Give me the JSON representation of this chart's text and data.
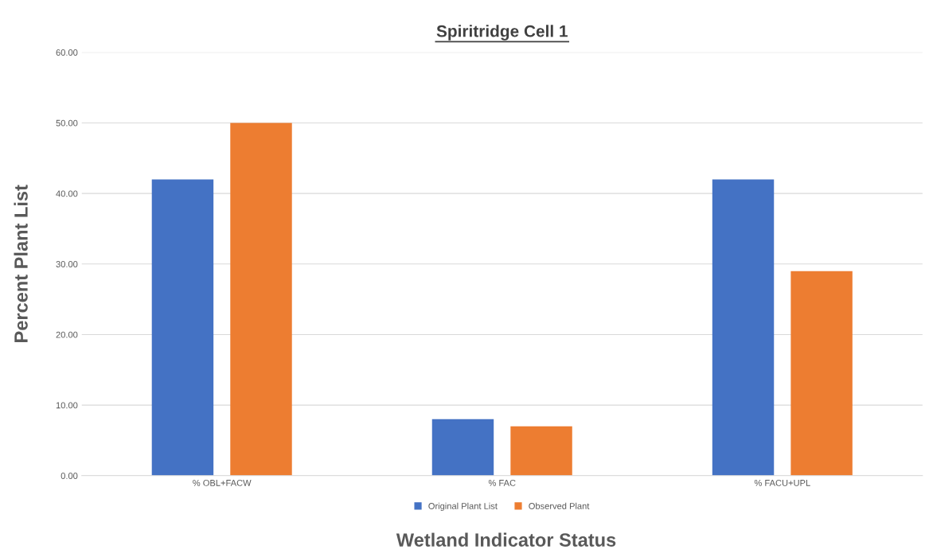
{
  "chart_data": {
    "type": "bar",
    "title": "Spiritridge Cell 1",
    "xlabel": "Wetland Indicator Status",
    "ylabel": "Percent Plant List",
    "categories": [
      "% OBL+FACW",
      "% FAC",
      "% FACU+UPL"
    ],
    "series": [
      {
        "name": "Original Plant List",
        "color": "#4472c4",
        "values": [
          42,
          8,
          42
        ]
      },
      {
        "name": "Observed Plant",
        "color": "#ed7d31",
        "values": [
          50,
          7,
          29
        ]
      }
    ],
    "ylim": [
      0,
      60
    ],
    "yticks": [
      {
        "value": 0,
        "label": "0.00"
      },
      {
        "value": 10,
        "label": "10.00"
      },
      {
        "value": 20,
        "label": "20.00"
      },
      {
        "value": 30,
        "label": "30.00"
      },
      {
        "value": 40,
        "label": "40.00"
      },
      {
        "value": 50,
        "label": "50.00"
      },
      {
        "value": 60,
        "label": "60.00"
      }
    ],
    "grid": "y",
    "legend": "bottom"
  }
}
